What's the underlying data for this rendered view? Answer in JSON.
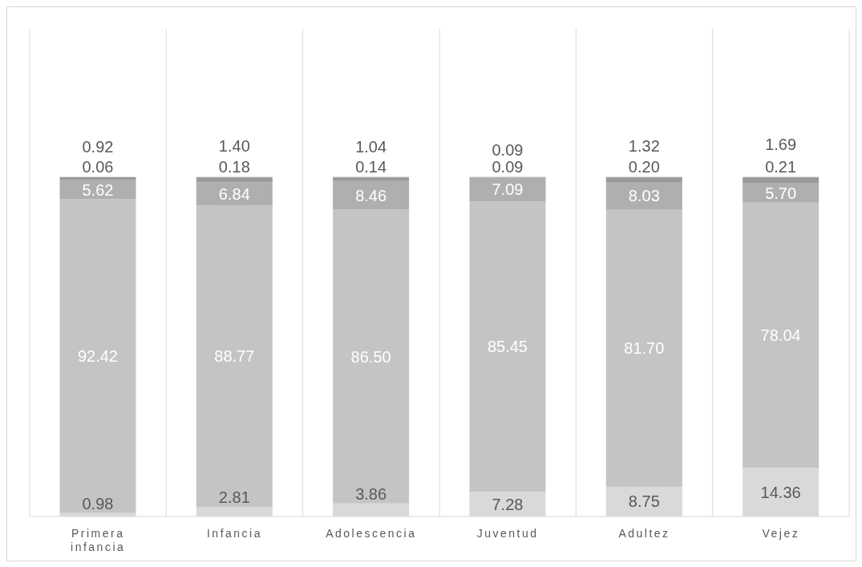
{
  "chart_data": {
    "type": "bar",
    "stacked": true,
    "grid": "x",
    "categories": [
      "Primera infancia",
      "Infancia",
      "Adolescencia",
      "Juventud",
      "Adultez",
      "Vejez"
    ],
    "series": [
      {
        "color": "#d9d9d9",
        "values": [
          0.98,
          2.81,
          3.86,
          7.28,
          8.75,
          14.36
        ],
        "value_labels": [
          "0.98",
          "2.81",
          "3.86",
          "7.28",
          "8.75",
          "14.36"
        ]
      },
      {
        "color": "#c4c4c4",
        "values": [
          92.42,
          88.77,
          86.5,
          85.45,
          81.7,
          78.04
        ],
        "value_labels": [
          "92.42",
          "88.77",
          "86.50",
          "85.45",
          "81.70",
          "78.04"
        ]
      },
      {
        "color": "#afafaf",
        "values": [
          5.62,
          6.84,
          8.46,
          7.09,
          8.03,
          5.7
        ],
        "value_labels": [
          "5.62",
          "6.84",
          "8.46",
          "7.09",
          "8.03",
          "5.70"
        ]
      },
      {
        "color": "#9a9a9a",
        "values": [
          0.92,
          1.4,
          1.04,
          0.09,
          1.32,
          1.69
        ],
        "value_labels": [
          "0.92",
          "1.40",
          "1.04",
          "0.09",
          "1.32",
          "1.69"
        ]
      },
      {
        "color": "#7f7f7f",
        "values": [
          0.06,
          0.18,
          0.14,
          0.09,
          0.2,
          0.21
        ],
        "value_labels": [
          "0.06",
          "0.18",
          "0.14",
          "0.09",
          "0.20",
          "0.21"
        ]
      }
    ]
  }
}
